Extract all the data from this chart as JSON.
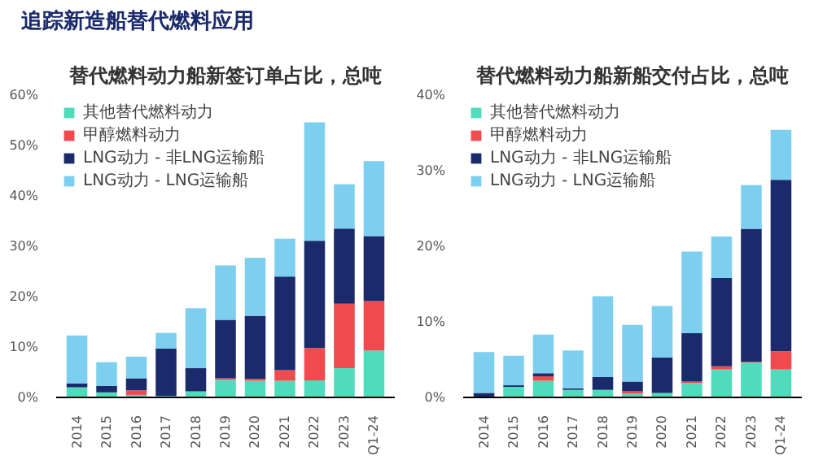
{
  "chart_data": [
    {
      "type": "bar",
      "stacked": true,
      "title": "替代燃料动力船新签订单占比，总吨",
      "annotations": [
        "追踪新造船替代燃料应用"
      ],
      "categories": [
        "2014",
        "2015",
        "2016",
        "2017",
        "2018",
        "2019",
        "2020",
        "2021",
        "2022",
        "2023",
        "Q1-24"
      ],
      "series": [
        {
          "name": "其他替代燃料动力",
          "color": "#4fdcbc",
          "values": [
            2.0,
            1.0,
            0.5,
            0.3,
            1.2,
            3.5,
            3.3,
            3.3,
            3.4,
            5.8,
            9.3
          ]
        },
        {
          "name": "甲醇燃料动力",
          "color": "#f04a4f",
          "values": [
            0,
            0,
            0.9,
            0,
            0,
            0.3,
            0.4,
            2.1,
            6.4,
            12.8,
            9.8
          ]
        },
        {
          "name": "LNG动力 - 非LNG运输船",
          "color": "#1b2a6b",
          "values": [
            0.8,
            1.3,
            2.4,
            9.4,
            4.6,
            11.6,
            12.5,
            18.6,
            21.3,
            14.9,
            12.9
          ]
        },
        {
          "name": "LNG动力 - LNG运输船",
          "color": "#7dcfef",
          "values": [
            9.5,
            4.7,
            4.3,
            3.1,
            11.9,
            10.8,
            11.5,
            7.5,
            23.5,
            8.8,
            14.9
          ]
        }
      ],
      "ylim": [
        0,
        60
      ],
      "yticks": [
        {
          "value": 0,
          "label": "0%"
        },
        {
          "value": 10,
          "label": "10%"
        },
        {
          "value": 20,
          "label": "20%"
        },
        {
          "value": 30,
          "label": "30%"
        },
        {
          "value": 40,
          "label": "40%"
        },
        {
          "value": 50,
          "label": "50%"
        },
        {
          "value": 60,
          "label": "60%"
        }
      ],
      "grid": false,
      "legend": "top left"
    },
    {
      "type": "bar",
      "stacked": true,
      "title": "替代燃料动力船新船交付占比，总吨",
      "categories": [
        "2014",
        "2015",
        "2016",
        "2017",
        "2018",
        "2019",
        "2020",
        "2021",
        "2022",
        "2023",
        "Q1-24"
      ],
      "series": [
        {
          "name": "其他替代燃料动力",
          "color": "#4fdcbc",
          "values": [
            0,
            1.4,
            2.2,
            1.0,
            1.0,
            0.5,
            0.6,
            1.9,
            3.7,
            4.6,
            3.7
          ]
        },
        {
          "name": "甲醇燃料动力",
          "color": "#f04a4f",
          "values": [
            0,
            0,
            0.6,
            0,
            0,
            0.3,
            0,
            0.2,
            0.4,
            0.1,
            2.4
          ]
        },
        {
          "name": "LNG动力 - 非LNG运输船",
          "color": "#1b2a6b",
          "values": [
            0.6,
            0.2,
            0.4,
            0.2,
            1.7,
            1.3,
            4.7,
            6.4,
            11.7,
            17.6,
            22.7
          ]
        },
        {
          "name": "LNG动力 - LNG运输船",
          "color": "#7dcfef",
          "values": [
            5.4,
            3.9,
            5.1,
            5.0,
            10.7,
            7.5,
            6.8,
            10.8,
            5.5,
            5.8,
            6.6
          ]
        }
      ],
      "ylim": [
        0,
        40
      ],
      "yticks": [
        {
          "value": 0,
          "label": "0%"
        },
        {
          "value": 10,
          "label": "10%"
        },
        {
          "value": 20,
          "label": "20%"
        },
        {
          "value": 30,
          "label": "30%"
        },
        {
          "value": 40,
          "label": "40%"
        }
      ],
      "grid": false,
      "legend": "top left"
    }
  ]
}
